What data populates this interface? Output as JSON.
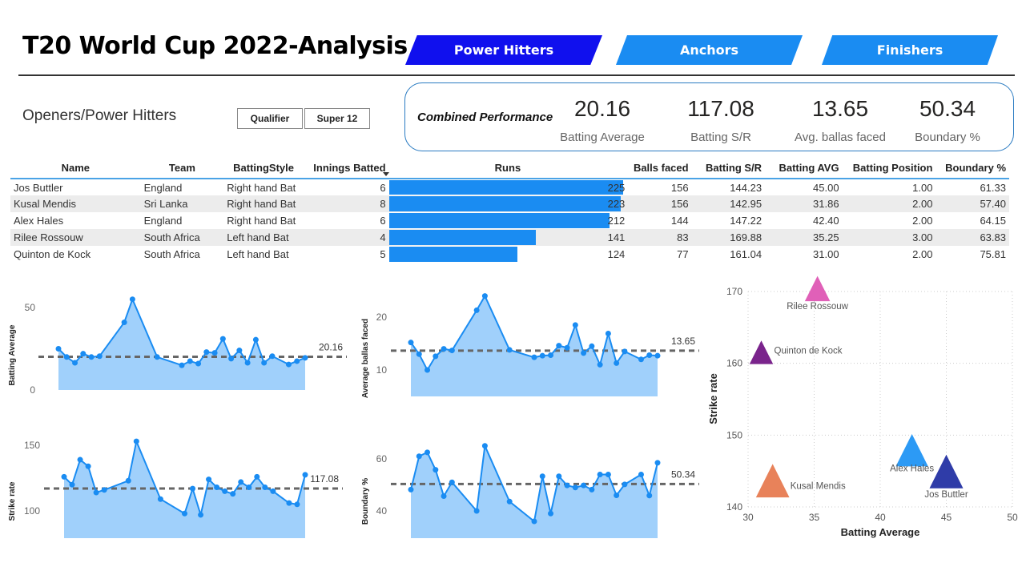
{
  "header": {
    "title": "T20 World Cup 2022-Analysis",
    "nav": [
      {
        "label": "Power Hitters",
        "active": true
      },
      {
        "label": "Anchors",
        "active": false
      },
      {
        "label": "Finishers",
        "active": false
      }
    ]
  },
  "section": {
    "title": "Openers/Power Hitters",
    "slicers": [
      "Qualifier",
      "Super 12"
    ]
  },
  "kpis": {
    "caption": "Combined Performance",
    "items": [
      {
        "value": "20.16",
        "label": "Batting Average"
      },
      {
        "value": "117.08",
        "label": "Batting S/R"
      },
      {
        "value": "13.65",
        "label": "Avg. ballas faced"
      },
      {
        "value": "50.34",
        "label": "Boundary %"
      }
    ]
  },
  "table": {
    "columns": [
      "Name",
      "Team",
      "BattingStyle",
      "Innings Batted",
      "Runs",
      "Balls faced",
      "Batting S/R",
      "Batting AVG",
      "Batting Position",
      "Boundary %"
    ],
    "runs_max": 225,
    "rows": [
      {
        "name": "Jos Buttler",
        "team": "England",
        "style": "Right hand Bat",
        "innings": "6",
        "runs": 225,
        "balls": "156",
        "sr": "144.23",
        "avg": "45.00",
        "pos": "1.00",
        "boundary": "61.33"
      },
      {
        "name": "Kusal Mendis",
        "team": "Sri Lanka",
        "style": "Right hand Bat",
        "innings": "8",
        "runs": 223,
        "balls": "156",
        "sr": "142.95",
        "avg": "31.86",
        "pos": "2.00",
        "boundary": "57.40"
      },
      {
        "name": "Alex Hales",
        "team": "England",
        "style": "Right hand Bat",
        "innings": "6",
        "runs": 212,
        "balls": "144",
        "sr": "147.22",
        "avg": "42.40",
        "pos": "2.00",
        "boundary": "64.15"
      },
      {
        "name": "Rilee Rossouw",
        "team": "South Africa",
        "style": "Left hand Bat",
        "innings": "4",
        "runs": 141,
        "balls": "83",
        "sr": "169.88",
        "avg": "35.25",
        "pos": "3.00",
        "boundary": "63.83"
      },
      {
        "name": "Quinton de Kock",
        "team": "South Africa",
        "style": "Left hand Bat",
        "innings": "5",
        "runs": 124,
        "balls": "77",
        "sr": "161.04",
        "avg": "31.00",
        "pos": "2.00",
        "boundary": "75.81"
      }
    ]
  },
  "colors": {
    "nav_active": "#1010ee",
    "nav_inactive": "#1a8cf2",
    "line": "#1a8cf2",
    "area": "#a0d0fb",
    "ref_line": "#666666"
  },
  "chart_data": [
    {
      "type": "area",
      "id": "batting-average",
      "ylabel": "Batting Average",
      "yticks": [
        0,
        50
      ],
      "ylim": [
        0,
        55
      ],
      "reference": {
        "value": 20.16,
        "label": "20.16"
      },
      "x": [
        1,
        2,
        3,
        4,
        5,
        6,
        9,
        10,
        13,
        16,
        17,
        18,
        19,
        20,
        21,
        22,
        23,
        24,
        25,
        26,
        27,
        29,
        30,
        31
      ],
      "values": [
        25,
        20,
        16.5,
        22,
        20,
        20.5,
        41,
        55,
        20,
        15,
        17.5,
        16,
        23,
        22.5,
        31,
        19,
        24,
        16.5,
        30.5,
        16.5,
        20.5,
        15.5,
        17.5,
        19.5
      ]
    },
    {
      "type": "area",
      "id": "avg-balls-faced",
      "ylabel": "Average ballas faced",
      "yticks": [
        10,
        20
      ],
      "ylim": [
        5,
        25
      ],
      "reference": {
        "value": 13.65,
        "label": "13.65"
      },
      "x": [
        1,
        2,
        3,
        4,
        5,
        6,
        9,
        10,
        13,
        16,
        17,
        18,
        19,
        20,
        21,
        22,
        23,
        24,
        25,
        26,
        27,
        29,
        30,
        31
      ],
      "values": [
        15.2,
        13,
        10,
        12.6,
        14,
        13.7,
        21.3,
        24,
        13.8,
        12.4,
        12.7,
        12.8,
        14.6,
        14.2,
        18.5,
        13.2,
        14.5,
        11,
        16.9,
        11.3,
        13.5,
        12,
        12.8,
        12.7
      ]
    },
    {
      "type": "area",
      "id": "strike-rate",
      "ylabel": "Strike rate",
      "yticks": [
        100,
        150
      ],
      "ylim": [
        80,
        155
      ],
      "reference": {
        "value": 117.08,
        "label": "117.08"
      },
      "x": [
        1,
        2,
        3,
        4,
        5,
        6,
        9,
        10,
        13,
        16,
        17,
        18,
        19,
        20,
        21,
        22,
        23,
        24,
        25,
        26,
        27,
        29,
        30,
        31
      ],
      "values": [
        126,
        120,
        139,
        134,
        114,
        116,
        123,
        153,
        109,
        98,
        117,
        97,
        124,
        118,
        115,
        113,
        122,
        118,
        126,
        118,
        115,
        106,
        105,
        127.5
      ]
    },
    {
      "type": "area",
      "id": "boundary-pct",
      "ylabel": "Boundary %",
      "yticks": [
        40,
        60
      ],
      "ylim": [
        30,
        65
      ],
      "reference": {
        "value": 50.34,
        "label": "50.34"
      },
      "x": [
        1,
        2,
        3,
        4,
        5,
        6,
        9,
        10,
        13,
        16,
        17,
        18,
        19,
        20,
        21,
        22,
        23,
        24,
        25,
        26,
        27,
        29,
        30,
        31
      ],
      "values": [
        48.2,
        61,
        62.5,
        55.8,
        45.7,
        51,
        40,
        65,
        43.6,
        36,
        53.3,
        39,
        53.3,
        49.8,
        49,
        49.8,
        48.2,
        54,
        54,
        46,
        50.2,
        54,
        45.9,
        58.5
      ]
    },
    {
      "type": "scatter",
      "id": "avg-vs-sr",
      "xlabel": "Batting Average",
      "ylabel": "Strike rate",
      "xlim": [
        30,
        50
      ],
      "ylim": [
        140,
        170
      ],
      "xticks": [
        30,
        35,
        40,
        45,
        50
      ],
      "yticks": [
        140,
        150,
        160,
        170
      ],
      "grid": true,
      "points": [
        {
          "label": "Jos Buttler",
          "x": 45.0,
          "y": 144.23,
          "size": 225,
          "color": "#2f3ca8"
        },
        {
          "label": "Kusal Mendis",
          "x": 31.86,
          "y": 142.95,
          "size": 223,
          "color": "#e8825a"
        },
        {
          "label": "Alex Hales",
          "x": 42.4,
          "y": 147.22,
          "size": 212,
          "color": "#2c9af5"
        },
        {
          "label": "Rilee Rossouw",
          "x": 35.25,
          "y": 169.88,
          "size": 141,
          "color": "#e060b8"
        },
        {
          "label": "Quinton de Kock",
          "x": 31.0,
          "y": 161.04,
          "size": 124,
          "color": "#7a248c"
        }
      ]
    }
  ]
}
